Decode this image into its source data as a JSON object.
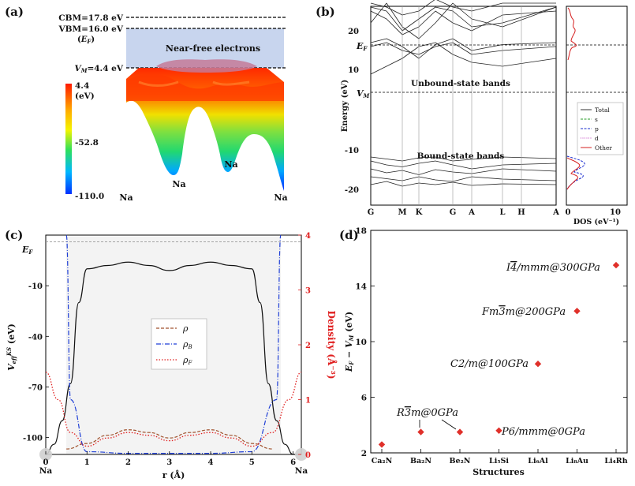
{
  "panels": {
    "a": {
      "label": "(a)",
      "levels": {
        "cbm": "CBM=17.8 eV",
        "vbm": "VBM=16.0 eV",
        "ef": "(E_F)",
        "vm": "V_M=4.4 eV"
      },
      "region_label": "Near-free electrons",
      "colorbar": {
        "ticks": [
          "4.4",
          "(eV)",
          "-52.8",
          "-110.0"
        ],
        "stops": [
          "#ff1a00",
          "#ffb000",
          "#f4f400",
          "#2fe05a",
          "#00b8ff",
          "#0030ff"
        ]
      },
      "atoms": [
        "Na",
        "Na",
        "Na",
        "Na"
      ]
    },
    "b": {
      "label": "(b)",
      "ylabel": "Energy (eV)",
      "k_labels": [
        "G",
        "M",
        "K",
        "G",
        "A",
        "L",
        "H",
        "A"
      ],
      "y_ticks": [
        "20",
        "10",
        "-10",
        "-20"
      ],
      "ef_label": "E_F",
      "vm_label": "V_M",
      "band_labels": [
        "Unbound-state bands",
        "Bound-state bands"
      ],
      "dos_xlabel": "DOS (eV⁻¹)",
      "dos_ticks": [
        "0",
        "10"
      ],
      "legend": [
        "Total",
        "s",
        "p",
        "d",
        "Other"
      ],
      "legend_colors": [
        "#333333",
        "#2a9d2a",
        "#1a2ccf",
        "#c040c0",
        "#d62020"
      ]
    },
    "c": {
      "label": "(c)",
      "ef_label": "E_F",
      "legend": [
        "ρ",
        "ρ_B",
        "ρ_F"
      ],
      "series_colors": [
        "#a0522d",
        "#1f3fd6",
        "#e02020"
      ]
    },
    "d": {
      "label": "(d)"
    }
  },
  "chart_data": [
    {
      "type": "line",
      "panel": "c",
      "xlabel": "r (Å)",
      "ylabel_left": "V_eff^KS (eV)",
      "ylabel_right": "Density (Å⁻³)",
      "xlim": [
        0,
        6.2
      ],
      "ylim_left": [
        -110,
        20
      ],
      "ylim_right": [
        0,
        4
      ],
      "x_ticks": [
        "0",
        "1",
        "2",
        "3",
        "4",
        "5",
        "6"
      ],
      "y_ticks_left": [
        "-10",
        "-40",
        "-70",
        "-100"
      ],
      "y_ticks_right": [
        "0",
        "1",
        "2",
        "3",
        "4"
      ],
      "atom_labels": [
        "Na",
        "Na"
      ],
      "ef_value": 16,
      "series": [
        {
          "name": "V_eff^KS",
          "x": [
            0,
            0.2,
            0.4,
            0.6,
            0.8,
            1.0,
            1.5,
            2.0,
            2.5,
            3.0,
            3.5,
            4.0,
            4.5,
            5.0,
            5.2,
            5.4,
            5.6,
            5.8,
            6.0,
            6.2
          ],
          "y": [
            -110,
            -104,
            -90,
            -68,
            -20,
            0,
            2,
            4,
            2,
            -1,
            2,
            4,
            2,
            0,
            -20,
            -68,
            -90,
            -104,
            -110,
            -110
          ]
        },
        {
          "name": "ρ",
          "x": [
            0.5,
            1.0,
            1.5,
            2.0,
            2.5,
            3.0,
            3.5,
            4.0,
            4.5,
            5.0,
            5.5
          ],
          "y": [
            0.1,
            0.2,
            0.35,
            0.45,
            0.4,
            0.3,
            0.4,
            0.45,
            0.35,
            0.2,
            0.1
          ]
        },
        {
          "name": "ρ_B",
          "x": [
            0.5,
            0.6,
            1.0,
            2.0,
            3.0,
            4.0,
            5.0,
            5.6,
            5.7
          ],
          "y": [
            4.0,
            1.0,
            0.05,
            0.02,
            0.02,
            0.02,
            0.05,
            1.0,
            4.0
          ]
        },
        {
          "name": "ρ_F",
          "x": [
            0,
            0.3,
            0.6,
            1.0,
            1.5,
            2.0,
            2.5,
            3.0,
            3.5,
            4.0,
            4.5,
            5.0,
            5.5,
            5.9,
            6.2
          ],
          "y": [
            1.5,
            1.0,
            0.4,
            0.15,
            0.3,
            0.4,
            0.35,
            0.25,
            0.35,
            0.4,
            0.3,
            0.15,
            0.4,
            1.0,
            1.5
          ]
        }
      ]
    },
    {
      "type": "scatter",
      "panel": "d",
      "xlabel": "Structures",
      "ylabel": "E_F − V_M (eV)",
      "categories": [
        "Ca₂N",
        "Ba₂N",
        "Be₂N",
        "Li₅Si",
        "Li₆Al",
        "Li₈Au",
        "Li₄Rh"
      ],
      "values": [
        2.6,
        3.5,
        3.5,
        3.6,
        8.4,
        12.2,
        15.5
      ],
      "ylim": [
        2,
        18
      ],
      "y_ticks": [
        "2",
        "6",
        "10",
        "14",
        "18"
      ],
      "marker_color": "#e0302a",
      "annotations": [
        {
          "text": "R3̄m@0GPa",
          "at": [
            1,
            2
          ]
        },
        {
          "text": "P6/mmm@0GPa",
          "at": [
            3
          ]
        },
        {
          "text": "C2/m@100GPa",
          "at": [
            4
          ]
        },
        {
          "text": "Fm3̄m@200GPa",
          "at": [
            5
          ]
        },
        {
          "text": "I4̄/mmm@300GPa",
          "at": [
            6
          ]
        }
      ]
    }
  ]
}
